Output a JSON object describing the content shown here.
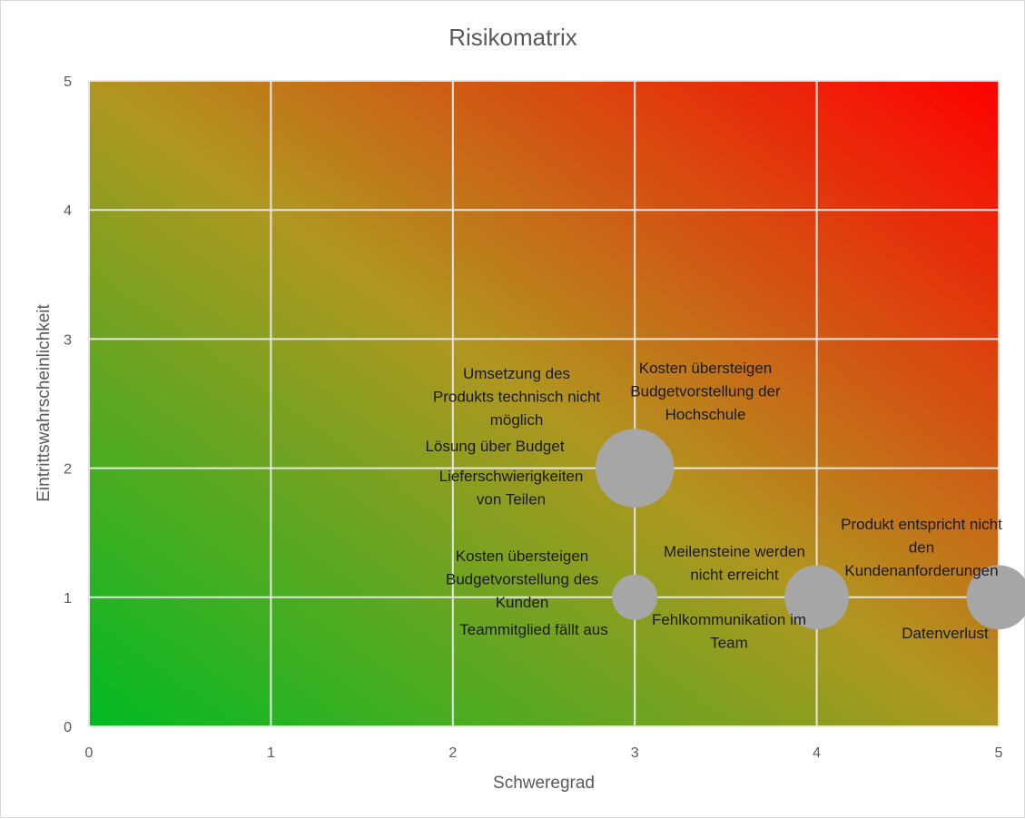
{
  "chart_data": {
    "type": "scatter",
    "variant": "bubble",
    "title": "Risikomatrix",
    "xlabel": "Schweregrad",
    "ylabel": "Eintrittswahrscheinlichkeit",
    "xlim": [
      0,
      5
    ],
    "ylim": [
      0,
      5
    ],
    "xticks": [
      "0",
      "1",
      "2",
      "3",
      "4",
      "5"
    ],
    "yticks": [
      "0",
      "1",
      "2",
      "3",
      "4",
      "5"
    ],
    "grid": true,
    "background_gradient": {
      "low": "#00bb22",
      "high": "#ff0000"
    },
    "bubble_color": "#a6a6a6",
    "points": [
      {
        "x": 3,
        "y": 2,
        "size": 3
      },
      {
        "x": 3,
        "y": 1,
        "size": 1
      },
      {
        "x": 4,
        "y": 1,
        "size": 2
      },
      {
        "x": 5,
        "y": 1,
        "size": 2
      }
    ],
    "labels": [
      {
        "id": "l1",
        "lines": [
          "Umsetzung des",
          "Produkts technisch nicht",
          "möglich"
        ]
      },
      {
        "id": "l2",
        "lines": [
          "Kosten übersteigen",
          "Budgetvorstellung der",
          "Hochschule"
        ]
      },
      {
        "id": "l3",
        "lines": [
          "Lösung über Budget"
        ]
      },
      {
        "id": "l4",
        "lines": [
          "Lieferschwierigkeiten",
          "von Teilen"
        ]
      },
      {
        "id": "l5",
        "lines": [
          "Kosten übersteigen",
          "Budgetvorstellung des",
          "Kunden"
        ]
      },
      {
        "id": "l6",
        "lines": [
          "Teammitglied fällt aus"
        ]
      },
      {
        "id": "l7",
        "lines": [
          "Meilensteine werden",
          "nicht erreicht"
        ]
      },
      {
        "id": "l8",
        "lines": [
          "Fehlkommunikation im",
          "Team"
        ]
      },
      {
        "id": "l9",
        "lines": [
          "Produkt entspricht nicht",
          "den",
          "Kundenanforderungen"
        ]
      },
      {
        "id": "l10",
        "lines": [
          "Datenverlust"
        ]
      }
    ]
  }
}
